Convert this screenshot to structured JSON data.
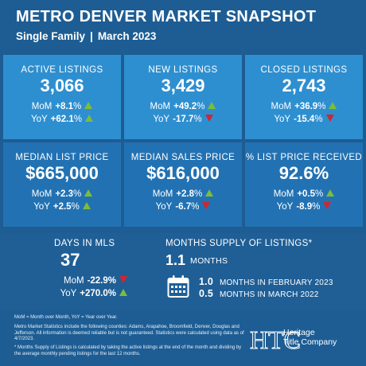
{
  "header": {
    "title": "METRO DENVER MARKET SNAPSHOT",
    "segment": "Single Family",
    "separator": "|",
    "period": "March 2023"
  },
  "metrics": [
    {
      "label": "ACTIVE LISTINGS",
      "value": "3,066",
      "mom_key": "MoM",
      "mom_val": "+8.1",
      "mom_pct": "%",
      "mom_dir": "up",
      "yoy_key": "YoY",
      "yoy_val": "+62.1",
      "yoy_pct": "%",
      "yoy_dir": "up"
    },
    {
      "label": "NEW LISTINGS",
      "value": "3,429",
      "mom_key": "MoM",
      "mom_val": "+49.2",
      "mom_pct": "%",
      "mom_dir": "up",
      "yoy_key": "YoY",
      "yoy_val": "-17.7",
      "yoy_pct": "%",
      "yoy_dir": "down"
    },
    {
      "label": "CLOSED LISTINGS",
      "value": "2,743",
      "mom_key": "MoM",
      "mom_val": "+36.9",
      "mom_pct": "%",
      "mom_dir": "up",
      "yoy_key": "YoY",
      "yoy_val": "-15.4",
      "yoy_pct": "%",
      "yoy_dir": "down"
    },
    {
      "label": "MEDIAN LIST PRICE",
      "value": "$665,000",
      "mom_key": "MoM",
      "mom_val": "+2.3",
      "mom_pct": "%",
      "mom_dir": "up",
      "yoy_key": "YoY",
      "yoy_val": "+2.5",
      "yoy_pct": "%",
      "yoy_dir": "up"
    },
    {
      "label": "MEDIAN SALES PRICE",
      "value": "$616,000",
      "mom_key": "MoM",
      "mom_val": "+2.8",
      "mom_pct": "%",
      "mom_dir": "up",
      "yoy_key": "YoY",
      "yoy_val": "-6.7",
      "yoy_pct": "%",
      "yoy_dir": "down"
    },
    {
      "label": "% LIST PRICE RECEIVED",
      "value": "92.6%",
      "mom_key": "MoM",
      "mom_val": "+0.5",
      "mom_pct": "%",
      "mom_dir": "up",
      "yoy_key": "YoY",
      "yoy_val": "-8.9",
      "yoy_pct": "%",
      "yoy_dir": "down"
    }
  ],
  "days_in_mls": {
    "label": "DAYS IN MLS",
    "value": "37",
    "mom_key": "MoM",
    "mom_val": "-22.9%",
    "mom_dir": "down",
    "yoy_key": "YoY",
    "yoy_val": "+270.0%",
    "yoy_dir": "up"
  },
  "months_supply": {
    "label": "MONTHS SUPPLY OF LISTINGS*",
    "value": "1.1",
    "unit": "MONTHS",
    "icon": "calendar-icon",
    "comparisons": [
      {
        "value": "1.0",
        "text": "MONTHS IN FEBRUARY 2023"
      },
      {
        "value": "0.5",
        "text": "MONTHS IN MARCH 2022"
      }
    ]
  },
  "footnotes": {
    "legend": "MoM = Month over Month, YoY = Year over Year.",
    "disclaimer": "Metro Market Statistics include the following counties: Adams, Arapahoe, Broomfield, Denver, Douglas and Jefferson. All information is deemed reliable but is not guaranteed. Statistics were calculated using data as of 4/7/2023.",
    "supply_note": "* Months Supply of Listings is calculated by taking the active listings at the end of the month and dividing by the average monthly pending listings for the last 12 months."
  },
  "logo": {
    "monogram": "HTC",
    "line1": "Heritage",
    "line2": "Title Company"
  },
  "colors": {
    "background": "#1d5d94",
    "tile_light": "#2e8fd0",
    "tile_mid": "#2272b3",
    "up": "#7dbd3a",
    "down": "#cf2630"
  }
}
